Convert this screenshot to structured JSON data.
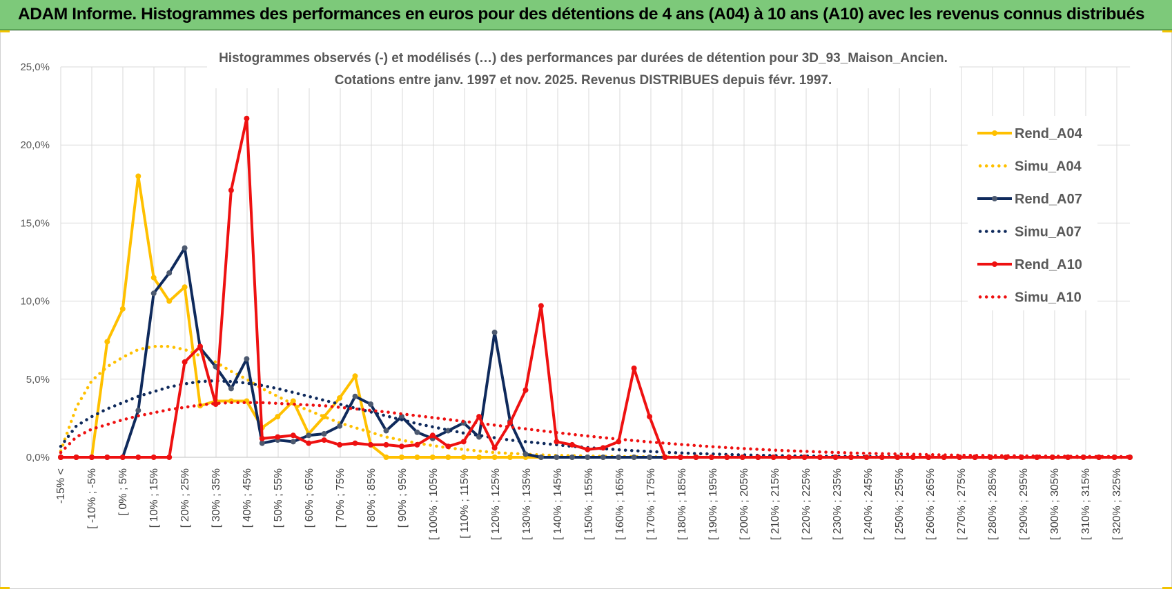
{
  "banner": {
    "title": "ADAM Informe. Histogrammes des performances en euros pour des détentions de 4 ans (A04) à 10 ans (A10) avec les revenus connus distribués"
  },
  "colors": {
    "banner_bg": "#7dc97a",
    "a04": "#ffc000",
    "a07": "#0f2a5c",
    "a07_marker": "#4d5a70",
    "a10": "#ee1111",
    "grid": "#d9d9d9"
  },
  "chart_data": {
    "type": "line",
    "title": "Histogrammes observés (-)  et modélisés (…) des performances par durées de détention pour 3D_93_Maison_Ancien.",
    "subtitle": "Cotations entre janv. 1997 et nov. 2025. Revenus DISTRIBUES depuis févr. 1997.",
    "xlabel": "",
    "ylabel": "",
    "ylim": [
      0,
      25
    ],
    "y_ticks": [
      "0,0%",
      "5,0%",
      "10,0%",
      "15,0%",
      "20,0%",
      "25,0%"
    ],
    "grid": true,
    "legend_position": "right",
    "x_labels": [
      "-15% <",
      "[ -10% ; -5%",
      "[ 0% ; 5%",
      "[ 10% ; 15%",
      "[ 20% ; 25%",
      "[ 30% ; 35%",
      "[ 40% ; 45%",
      "[ 50% ; 55%",
      "[ 60% ; 65%",
      "[ 70% ; 75%",
      "[ 80% ; 85%",
      "[ 90% ; 95%",
      "[ 100% ; 105%",
      "[ 110% ; 115%",
      "[ 120% ; 125%",
      "[ 130% ; 135%",
      "[ 140% ; 145%",
      "[ 150% ; 155%",
      "[ 160% ; 165%",
      "[ 170% ; 175%",
      "[ 180% ; 185%",
      "[ 190% ; 195%",
      "[ 200% ; 205%",
      "[ 210% ; 215%",
      "[ 220% ; 225%",
      "[ 230% ; 235%",
      "[ 240% ; 245%",
      "[ 250% ; 255%",
      "[ 260% ; 265%",
      "[ 270% ; 275%",
      "[ 280% ; 285%",
      "[ 290% ; 295%",
      "[ 300% ; 305%",
      "[ 310% ; 315%",
      "[ 320% ; 325%"
    ],
    "series": [
      {
        "name": "Rend_A04",
        "style": "solid",
        "color": "#ffc000",
        "marker_color": "#ffc000",
        "values": [
          0,
          0,
          0,
          7.4,
          9.5,
          18,
          11.5,
          10,
          10.9,
          3.3,
          3.6,
          3.6,
          3.6,
          1.9,
          2.6,
          3.6,
          1.5,
          2.6,
          3.8,
          5.2,
          0.8,
          0,
          0,
          0,
          0,
          0,
          0,
          0,
          0,
          0,
          0,
          0,
          0,
          0,
          0,
          0,
          0,
          0,
          0,
          0,
          0,
          0,
          0,
          0,
          0,
          0,
          0,
          0,
          0,
          0,
          0,
          0,
          0,
          0,
          0,
          0,
          0,
          0,
          0,
          0,
          0,
          0,
          0,
          0,
          0,
          0,
          0,
          0,
          0,
          0
        ]
      },
      {
        "name": "Simu_A04",
        "style": "dotted",
        "color": "#ffc000",
        "values": [
          0.4,
          3.2,
          4.9,
          5.8,
          6.4,
          6.9,
          7.1,
          7.1,
          6.9,
          6.5,
          6.1,
          5.5,
          5,
          4.4,
          3.9,
          3.4,
          3,
          2.6,
          2.2,
          1.9,
          1.6,
          1.3,
          1.1,
          0.9,
          0.75,
          0.6,
          0.5,
          0.4,
          0.3,
          0.25,
          0.2,
          0.15,
          0.12,
          0.1,
          0.08,
          0.06,
          0.05,
          0.04,
          0.03,
          0.02,
          0.015,
          0.01,
          0,
          0,
          0,
          0,
          0,
          0,
          0,
          0,
          0,
          0,
          0,
          0,
          0,
          0,
          0,
          0,
          0,
          0,
          0,
          0,
          0,
          0,
          0,
          0,
          0,
          0,
          0,
          0
        ]
      },
      {
        "name": "Rend_A07",
        "style": "solid",
        "color": "#0f2a5c",
        "marker_color": "#4d5a70",
        "values": [
          0,
          0,
          0,
          0,
          0,
          3,
          10.5,
          11.8,
          13.4,
          7,
          5.8,
          4.4,
          6.3,
          0.9,
          1.1,
          1,
          1.4,
          1.5,
          2,
          3.9,
          3.4,
          1.7,
          2.6,
          1.6,
          1.2,
          1.7,
          2.2,
          1.3,
          8,
          2.3,
          0.2,
          0,
          0,
          0,
          0,
          0,
          0,
          0,
          0,
          0,
          0,
          0,
          0,
          0,
          0,
          0,
          0,
          0,
          0,
          0,
          0,
          0,
          0,
          0,
          0,
          0,
          0,
          0,
          0,
          0,
          0,
          0,
          0,
          0,
          0,
          0,
          0,
          0,
          0,
          0
        ]
      },
      {
        "name": "Simu_A07",
        "style": "dotted",
        "color": "#0f2a5c",
        "values": [
          0.7,
          2,
          2.6,
          3.1,
          3.5,
          3.9,
          4.2,
          4.5,
          4.7,
          4.85,
          4.9,
          4.85,
          4.75,
          4.6,
          4.4,
          4.15,
          3.9,
          3.65,
          3.4,
          3.15,
          2.9,
          2.65,
          2.4,
          2.15,
          1.95,
          1.75,
          1.55,
          1.4,
          1.25,
          1.1,
          1,
          0.9,
          0.8,
          0.7,
          0.62,
          0.55,
          0.48,
          0.42,
          0.37,
          0.32,
          0.28,
          0.24,
          0.21,
          0.18,
          0.15,
          0.13,
          0.11,
          0.09,
          0.08,
          0.07,
          0.06,
          0.05,
          0.04,
          0.03,
          0.03,
          0.02,
          0.02,
          0.01,
          0.01,
          0,
          0,
          0,
          0,
          0,
          0,
          0,
          0,
          0,
          0,
          0
        ]
      },
      {
        "name": "Rend_A10",
        "style": "solid",
        "color": "#ee1111",
        "marker_color": "#ee1111",
        "values": [
          0,
          0,
          0,
          0,
          0,
          0,
          0,
          0,
          6.1,
          7.1,
          3.4,
          17.1,
          21.7,
          1.2,
          1.3,
          1.4,
          0.9,
          1.1,
          0.8,
          0.9,
          0.8,
          0.8,
          0.7,
          0.8,
          1.4,
          0.7,
          1,
          2.6,
          0.6,
          2.2,
          4.3,
          9.7,
          1,
          0.8,
          0.5,
          0.6,
          1,
          5.7,
          2.6,
          0,
          0,
          0,
          0,
          0,
          0,
          0,
          0,
          0,
          0,
          0,
          0,
          0,
          0,
          0,
          0,
          0,
          0,
          0,
          0,
          0,
          0,
          0,
          0,
          0,
          0,
          0,
          0,
          0,
          0,
          0
        ]
      },
      {
        "name": "Simu_A10",
        "style": "dotted",
        "color": "#ee1111",
        "values": [
          0.3,
          1.3,
          1.8,
          2.1,
          2.4,
          2.65,
          2.85,
          3.05,
          3.2,
          3.35,
          3.45,
          3.5,
          3.5,
          3.5,
          3.45,
          3.4,
          3.35,
          3.3,
          3.2,
          3.1,
          3,
          2.9,
          2.78,
          2.66,
          2.54,
          2.42,
          2.3,
          2.18,
          2.06,
          1.94,
          1.82,
          1.7,
          1.58,
          1.47,
          1.36,
          1.26,
          1.16,
          1.07,
          0.98,
          0.9,
          0.82,
          0.75,
          0.68,
          0.62,
          0.56,
          0.51,
          0.46,
          0.42,
          0.38,
          0.34,
          0.31,
          0.28,
          0.25,
          0.23,
          0.21,
          0.19,
          0.17,
          0.15,
          0.13,
          0.12,
          0.11,
          0.1,
          0.09,
          0.08,
          0.07,
          0.06,
          0.06,
          0.05,
          0.05,
          0.04
        ]
      }
    ]
  }
}
